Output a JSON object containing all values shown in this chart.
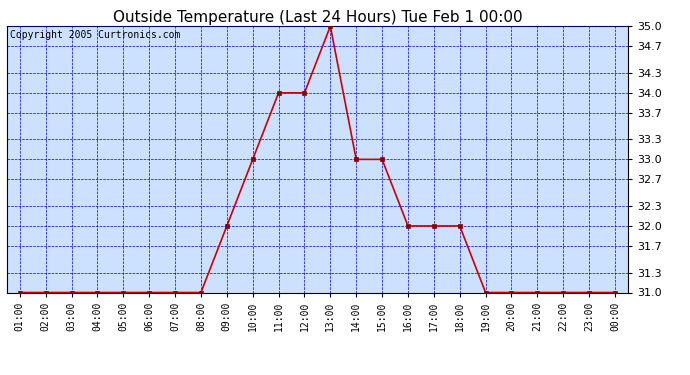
{
  "title": "Outside Temperature (Last 24 Hours) Tue Feb 1 00:00",
  "copyright": "Copyright 2005 Curtronics.com",
  "x_labels": [
    "01:00",
    "02:00",
    "03:00",
    "04:00",
    "05:00",
    "06:00",
    "07:00",
    "08:00",
    "09:00",
    "10:00",
    "11:00",
    "12:00",
    "13:00",
    "14:00",
    "15:00",
    "16:00",
    "17:00",
    "18:00",
    "19:00",
    "20:00",
    "21:00",
    "22:00",
    "23:00",
    "00:00"
  ],
  "x_values": [
    1,
    2,
    3,
    4,
    5,
    6,
    7,
    8,
    9,
    10,
    11,
    12,
    13,
    14,
    15,
    16,
    17,
    18,
    19,
    20,
    21,
    22,
    23,
    24
  ],
  "y_values": [
    31.0,
    31.0,
    31.0,
    31.0,
    31.0,
    31.0,
    31.0,
    31.0,
    32.0,
    33.0,
    34.0,
    34.0,
    35.0,
    33.0,
    33.0,
    32.0,
    32.0,
    32.0,
    31.0,
    31.0,
    31.0,
    31.0,
    31.0,
    31.0
  ],
  "ylim_min": 31.0,
  "ylim_max": 35.0,
  "y_ticks": [
    31.0,
    31.3,
    31.7,
    32.0,
    32.3,
    32.7,
    33.0,
    33.3,
    33.7,
    34.0,
    34.3,
    34.7,
    35.0
  ],
  "line_color": "#cc0000",
  "marker_color": "#880000",
  "grid_color": "#0000cc",
  "bg_color": "#cce0ff",
  "title_fontsize": 11,
  "copyright_fontsize": 7,
  "tick_fontsize": 8,
  "xtick_fontsize": 7
}
